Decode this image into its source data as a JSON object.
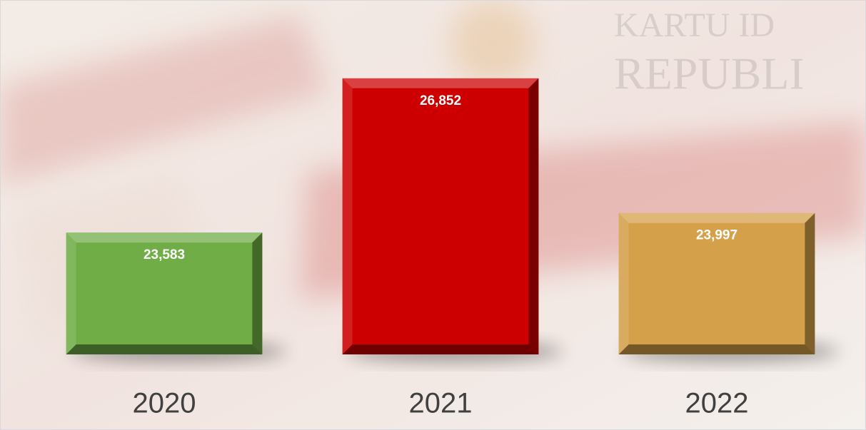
{
  "chart_data": {
    "type": "bar",
    "categories": [
      "2020",
      "2021",
      "2022"
    ],
    "values": [
      23583,
      26852,
      23997
    ],
    "value_labels": [
      "23,583",
      "26,852",
      "23,997"
    ],
    "colors": [
      "#70ad47",
      "#cc0000",
      "#d4a04a"
    ],
    "ylim": [
      21000,
      27000
    ],
    "grid": false
  }
}
